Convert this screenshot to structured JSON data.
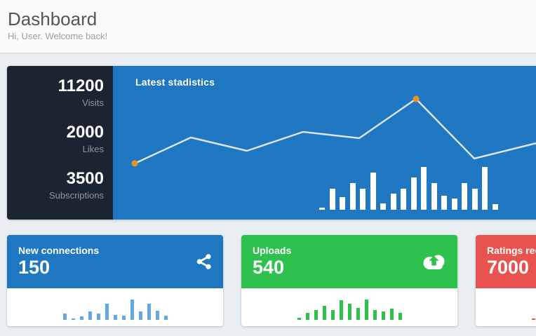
{
  "header": {
    "title": "Dashboard",
    "subtitle": "Hi, User. Welcome back!"
  },
  "colors": {
    "page_background": "#e9eef2",
    "header_background": "#fafafa",
    "dark_panel": "#1b2431",
    "blue": "#1e77c0",
    "green": "#2ec14e",
    "red": "#e8524f",
    "light_blue_bars": "#64a8e1",
    "line_stroke": "#dce3ea",
    "marker_orange": "#f0921e",
    "white": "#ffffff"
  },
  "stats_panel": {
    "stats": [
      {
        "value": "11200",
        "label": "Visits"
      },
      {
        "value": "2000",
        "label": "Likes"
      },
      {
        "value": "3500",
        "label": "Subscriptions"
      }
    ],
    "chart_title": "Latest stadistics"
  },
  "chart_data": {
    "main_line": {
      "type": "line",
      "title": "Latest stadistics",
      "points": [
        [
          31,
          139
        ],
        [
          111,
          102
        ],
        [
          191,
          121
        ],
        [
          271,
          94
        ],
        [
          351,
          103
        ],
        [
          432,
          47
        ],
        [
          515,
          132
        ],
        [
          620,
          106
        ]
      ],
      "markers": [
        0,
        5
      ],
      "stroke": "#dce3ea",
      "marker_color": "#f0921e",
      "axes": "none"
    },
    "main_bars": {
      "type": "bar",
      "color": "#ffffff",
      "values": [
        3,
        30,
        18,
        38,
        30,
        53,
        9,
        23,
        30,
        46,
        61,
        38,
        20,
        16,
        38,
        30,
        61,
        8
      ],
      "axes": "none"
    },
    "connections_bars": {
      "type": "bar",
      "color": "#64a8e1",
      "values": [
        9,
        2,
        5,
        12,
        9,
        23,
        7,
        6,
        29,
        12,
        23,
        13,
        6
      ],
      "axes": "none"
    },
    "uploads_bars": {
      "type": "bar",
      "color": "#2ec14e",
      "values": [
        3,
        10,
        14,
        20,
        14,
        28,
        23,
        17,
        29,
        14,
        12,
        16,
        10
      ],
      "axes": "none"
    },
    "ratings_bars": {
      "type": "bar",
      "color": "#e8524f",
      "values": [
        2
      ],
      "axes": "none"
    }
  },
  "cards": [
    {
      "label": "New connections",
      "value": "150",
      "icon": "share-icon",
      "color": "#1e77c0"
    },
    {
      "label": "Uploads",
      "value": "540",
      "icon": "cloud-upload-icon",
      "color": "#2ec14e"
    },
    {
      "label": "Ratings received",
      "value": "7000",
      "icon": "",
      "color": "#e8524f"
    }
  ]
}
